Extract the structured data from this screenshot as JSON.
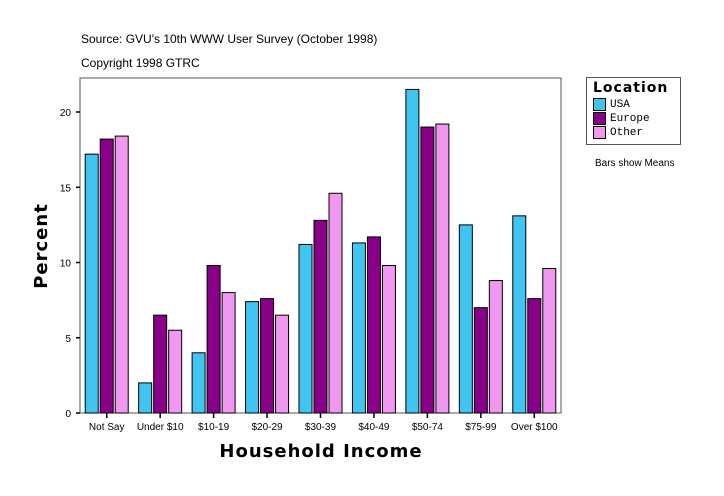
{
  "chart_data": {
    "type": "bar",
    "title": "Source: GVU's 10th WWW User Survey (October 1998)",
    "subtitle": "Copyright 1998 GTRC",
    "xlabel": "Household Income",
    "ylabel": "Percent",
    "ylim": [
      0,
      22.3
    ],
    "yticks": [
      0,
      5,
      10,
      15,
      20
    ],
    "grid": false,
    "legend_title": "Location",
    "legend_position": "right",
    "note": "Bars show Means",
    "categories": [
      "Not Say",
      "Under $10",
      "$10-19",
      "$20-29",
      "$30-39",
      "$40-49",
      "$50-74",
      "$75-99",
      "Over $100"
    ],
    "series": [
      {
        "name": "USA",
        "color": "#40c4f0",
        "values": [
          17.2,
          2.0,
          4.0,
          7.4,
          11.2,
          11.3,
          21.5,
          12.5,
          13.1
        ]
      },
      {
        "name": "Europe",
        "color": "#880088",
        "values": [
          18.2,
          6.5,
          9.8,
          7.6,
          12.8,
          11.7,
          19.0,
          7.0,
          7.6
        ]
      },
      {
        "name": "Other",
        "color": "#f098f0",
        "values": [
          18.4,
          5.5,
          8.0,
          6.5,
          14.6,
          9.8,
          19.2,
          8.8,
          9.6
        ]
      }
    ]
  }
}
